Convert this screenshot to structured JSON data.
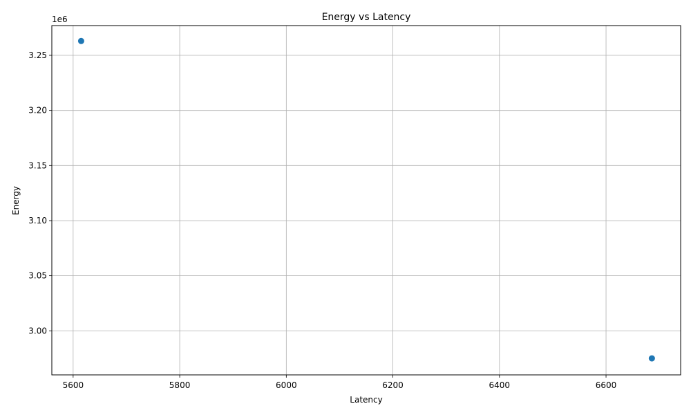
{
  "chart_data": {
    "type": "scatter",
    "title": "Energy vs Latency",
    "xlabel": "Latency",
    "ylabel": "Energy",
    "y_offset_label": "1e6",
    "y_scale": 1000000,
    "xlim": [
      5560,
      6740
    ],
    "ylim": [
      2960000,
      3277000
    ],
    "x_ticks": [
      5600,
      5800,
      6000,
      6200,
      6400,
      6600
    ],
    "y_ticks": [
      3000000,
      3050000,
      3100000,
      3150000,
      3200000,
      3250000
    ],
    "y_tick_labels": [
      "3.00",
      "3.05",
      "3.10",
      "3.15",
      "3.20",
      "3.25"
    ],
    "grid": true,
    "marker_color": "#1f77b4",
    "points": [
      {
        "x": 5615,
        "y": 3263000
      },
      {
        "x": 6686,
        "y": 2975000
      }
    ]
  }
}
